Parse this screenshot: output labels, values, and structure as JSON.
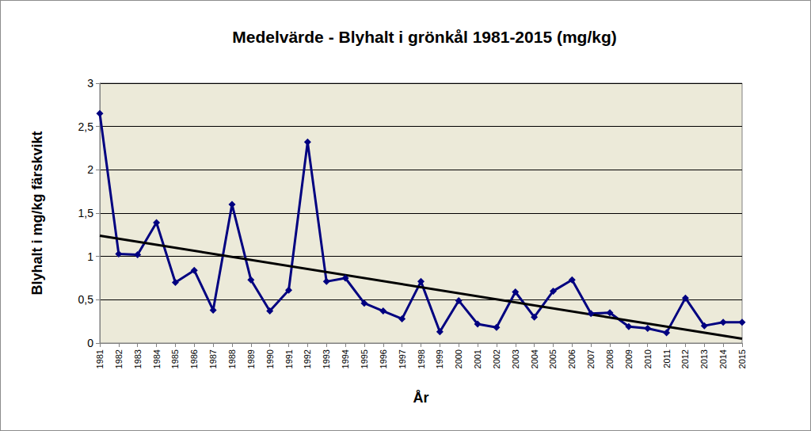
{
  "chart_data": {
    "type": "line",
    "title": "Medelvärde - Blyhalt i grönkål 1981-2015 (mg/kg)",
    "x_label": "År",
    "y_label": "Blyhalt i mg/kg färskvikt",
    "categories": [
      "1981",
      "1982",
      "1983",
      "1984",
      "1985",
      "1986",
      "1987",
      "1988",
      "1989",
      "1990",
      "1991",
      "1992",
      "1993",
      "1994",
      "1995",
      "1996",
      "1997",
      "1998",
      "1999",
      "2000",
      "2001",
      "2002",
      "2003",
      "2004",
      "2005",
      "2006",
      "2007",
      "2008",
      "2009",
      "2010",
      "2011",
      "2012",
      "2013",
      "2014",
      "2015"
    ],
    "series": [
      {
        "color": "#000080",
        "marker": "diamond",
        "line_style": "solid",
        "values": [
          2.65,
          1.03,
          1.02,
          1.39,
          0.7,
          0.84,
          0.38,
          1.6,
          0.73,
          0.37,
          0.61,
          2.32,
          0.71,
          0.75,
          0.46,
          0.37,
          0.28,
          0.71,
          0.13,
          0.49,
          0.22,
          0.18,
          0.59,
          0.3,
          0.6,
          0.73,
          0.34,
          0.35,
          0.19,
          0.17,
          0.12,
          0.52,
          0.2,
          0.24,
          0.24
        ]
      },
      {
        "color": "#000000",
        "marker": "none",
        "line_style": "solid",
        "values": [
          1.24,
          null,
          null,
          null,
          null,
          null,
          null,
          null,
          null,
          null,
          null,
          null,
          null,
          null,
          null,
          null,
          null,
          null,
          null,
          null,
          null,
          null,
          null,
          null,
          null,
          null,
          null,
          null,
          null,
          null,
          null,
          null,
          null,
          null,
          0.05
        ]
      }
    ],
    "ylim": [
      0,
      3
    ],
    "yticks": [
      0,
      {
        "value": 0.5,
        "label": "0,5"
      },
      1,
      {
        "value": 1.5,
        "label": "1,5"
      },
      2,
      {
        "value": 2.5,
        "label": "2,5"
      },
      3
    ],
    "grid": true
  }
}
